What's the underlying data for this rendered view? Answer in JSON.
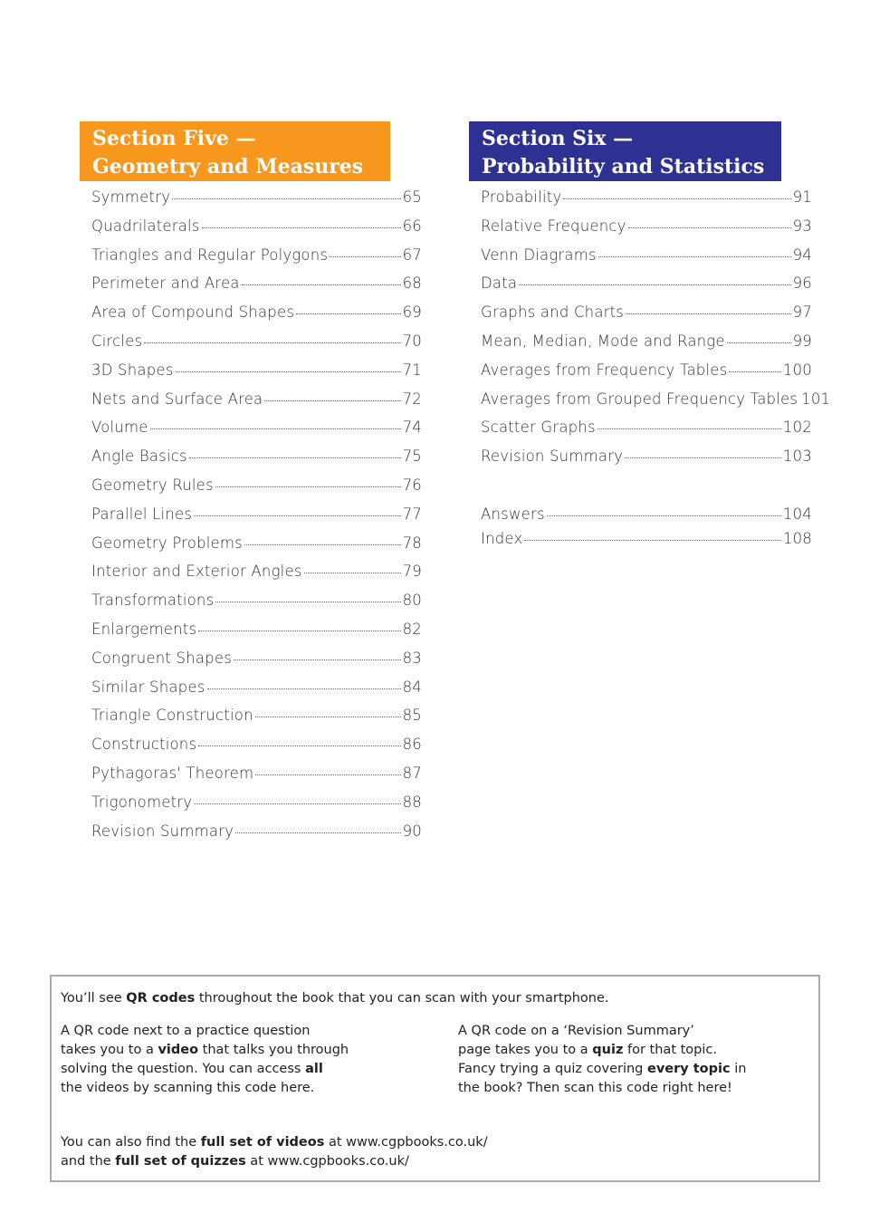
{
  "section5": {
    "title_line1": "Section Five —",
    "title_line2": "Geometry and Measures",
    "color": "#f7971e",
    "entries": [
      [
        "Symmetry",
        "65"
      ],
      [
        "Quadrilaterals",
        "66"
      ],
      [
        "Triangles and Regular Polygons",
        "67"
      ],
      [
        "Perimeter and Area",
        "68"
      ],
      [
        "Area of Compound Shapes",
        "69"
      ],
      [
        "Circles",
        "70"
      ],
      [
        "3D Shapes",
        "71"
      ],
      [
        "Nets and Surface Area",
        "72"
      ],
      [
        "Volume",
        "74"
      ],
      [
        "Angle Basics",
        "75"
      ],
      [
        "Geometry Rules",
        "76"
      ],
      [
        "Parallel Lines",
        "77"
      ],
      [
        "Geometry Problems",
        "78"
      ],
      [
        "Interior and Exterior Angles",
        "79"
      ],
      [
        "Transformations",
        "80"
      ],
      [
        "Enlargements",
        "82"
      ],
      [
        "Congruent Shapes",
        "83"
      ],
      [
        "Similar Shapes",
        "84"
      ],
      [
        "Triangle Construction",
        "85"
      ],
      [
        "Constructions",
        "86"
      ],
      [
        "Pythagoras' Theorem",
        "87"
      ],
      [
        "Trigonometry",
        "88"
      ],
      [
        "Revision Summary",
        "90"
      ]
    ]
  },
  "section6": {
    "title_line1": "Section Six —",
    "title_line2": "Probability and Statistics",
    "color": "#2e3192",
    "entries": [
      [
        "Probability",
        "91"
      ],
      [
        "Relative Frequency",
        "93"
      ],
      [
        "Venn Diagrams",
        "94"
      ],
      [
        "Data",
        "96"
      ],
      [
        "Graphs and Charts",
        "97"
      ],
      [
        "Mean, Median, Mode and Range",
        "99"
      ],
      [
        "Averages from Frequency Tables",
        "100"
      ],
      [
        "Averages from Grouped Frequency Tables",
        "101"
      ],
      [
        "Scatter Graphs",
        "102"
      ],
      [
        "Revision Summary",
        "103"
      ]
    ]
  },
  "back_matter": [
    [
      "Answers",
      "104"
    ],
    [
      "Index",
      "108"
    ]
  ],
  "qr_box": {
    "intro": [
      [
        "You’ll see ",
        false
      ],
      [
        "QR codes",
        true
      ],
      [
        " throughout the book that you can scan with your smartphone.",
        false
      ]
    ],
    "left": [
      [
        [
          "A QR code next to a practice question",
          false
        ]
      ],
      [
        [
          "takes you to a ",
          false
        ],
        [
          "video",
          true
        ],
        [
          " that talks you through",
          false
        ]
      ],
      [
        [
          "solving the question.  You can access ",
          false
        ],
        [
          "all",
          true
        ]
      ],
      [
        [
          "the videos by scanning this code here.",
          false
        ]
      ]
    ],
    "right": [
      [
        [
          "A QR code on a ‘Revision Summary’",
          false
        ]
      ],
      [
        [
          "page takes you to a ",
          false
        ],
        [
          "quiz",
          true
        ],
        [
          " for that topic.",
          false
        ]
      ],
      [
        [
          "Fancy trying a quiz covering ",
          false
        ],
        [
          "every topic",
          true
        ],
        [
          " in",
          false
        ]
      ],
      [
        [
          "the book?  Then scan this code right here!",
          false
        ]
      ]
    ],
    "footer": [
      [
        [
          "You can also find the ",
          false
        ],
        [
          "full set of videos",
          true
        ],
        [
          " at www.cgpbooks.co.uk/",
          false
        ]
      ],
      [
        [
          "and the ",
          false
        ],
        [
          "full set of quizzes",
          true
        ],
        [
          " at www.cgpbooks.co.uk/",
          false
        ]
      ]
    ]
  }
}
